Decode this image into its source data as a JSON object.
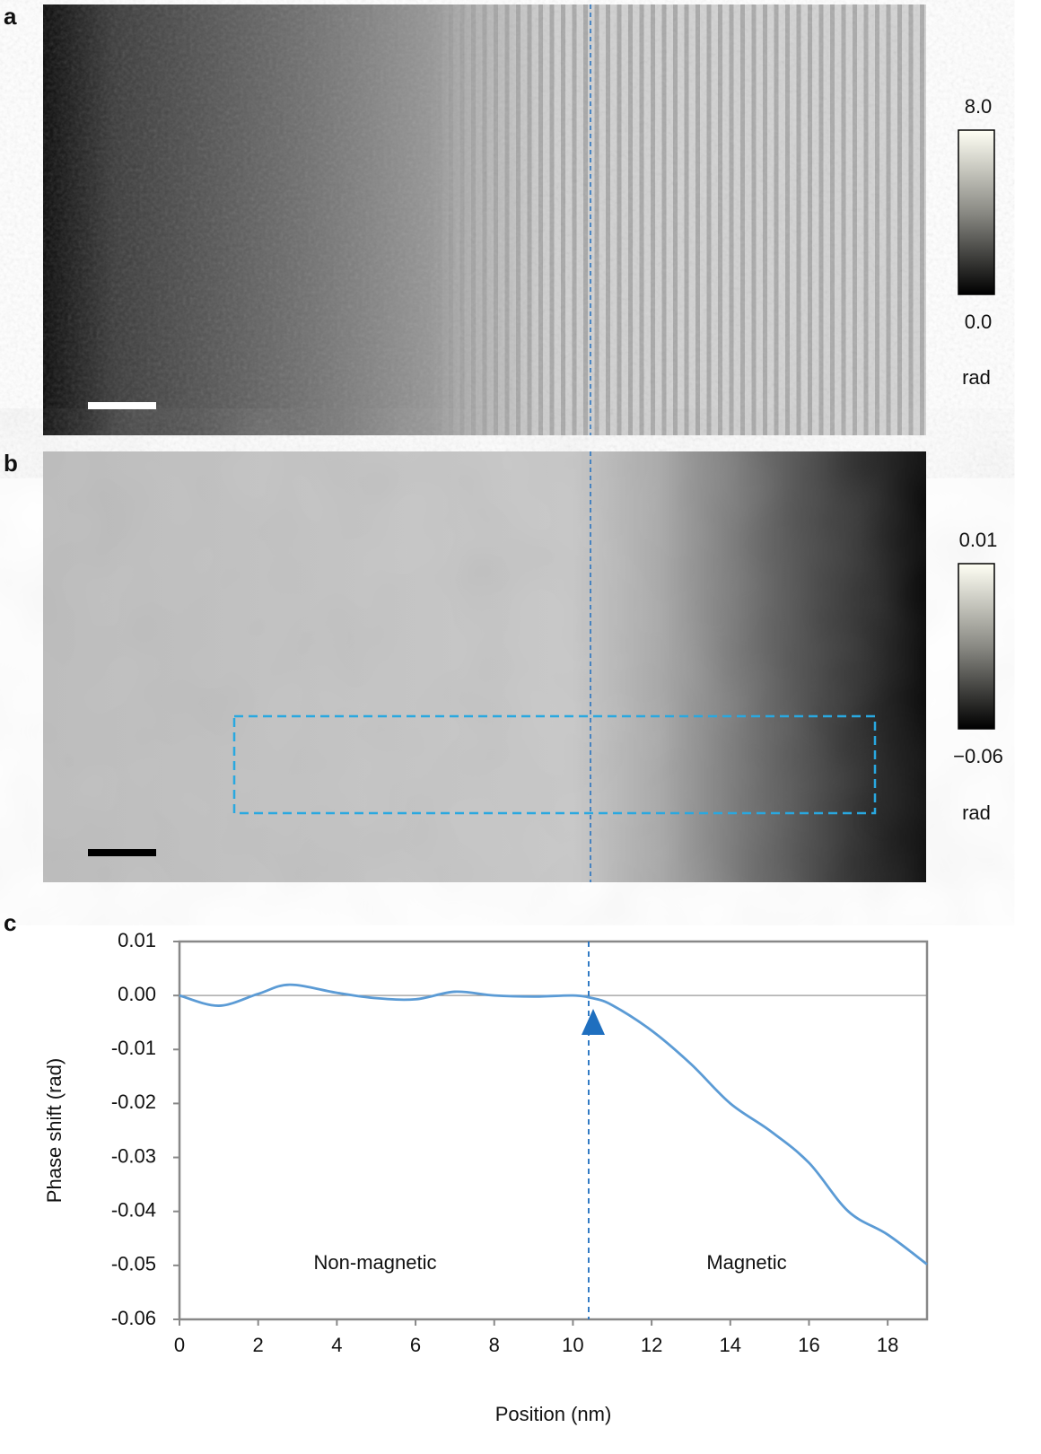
{
  "panels": {
    "a": {
      "label": "a",
      "colorbar": {
        "ticks": [
          {
            "value": 8,
            "label": "8.0"
          },
          {
            "value": 0,
            "label": "0.0"
          }
        ],
        "unit": "rad"
      }
    },
    "b": {
      "label": "b",
      "colorbar": {
        "ticks": [
          0.01,
          {
            "value": -0.06,
            "label": "−0.06"
          }
        ],
        "unit": "rad"
      }
    }
  },
  "chart_data": {
    "type": "line",
    "panel_label": "c",
    "x_label": "Position (nm)",
    "y_label": "Phase shift (rad)",
    "x": [
      0,
      1,
      2,
      2.8,
      4,
      5,
      6,
      7,
      8,
      9,
      10,
      10.5,
      11,
      12,
      13,
      14,
      15,
      16,
      17,
      18,
      19
    ],
    "values": [
      0,
      -0.0019,
      0.0003,
      0.002,
      0.0005,
      -0.0005,
      -0.0007,
      0.0007,
      0,
      -0.0002,
      0,
      -0.0005,
      -0.0018,
      -0.0065,
      -0.0127,
      -0.02,
      -0.025,
      -0.031,
      -0.04,
      -0.0443,
      -0.0498
    ],
    "color": "#5b9bd5",
    "xlim": [
      0,
      19
    ],
    "xticks": [
      0,
      2,
      4,
      6,
      8,
      10,
      12,
      14,
      16,
      18
    ],
    "ylim": [
      -0.06,
      0.01
    ],
    "yticks": [
      0.01,
      {
        "value": 0,
        "label": "0.00"
      },
      -0.01,
      -0.02,
      -0.03,
      -0.04,
      -0.05,
      -0.06
    ],
    "boundary_x": 10.4,
    "annotations": [
      "Non-magnetic",
      "Magnetic"
    ]
  }
}
